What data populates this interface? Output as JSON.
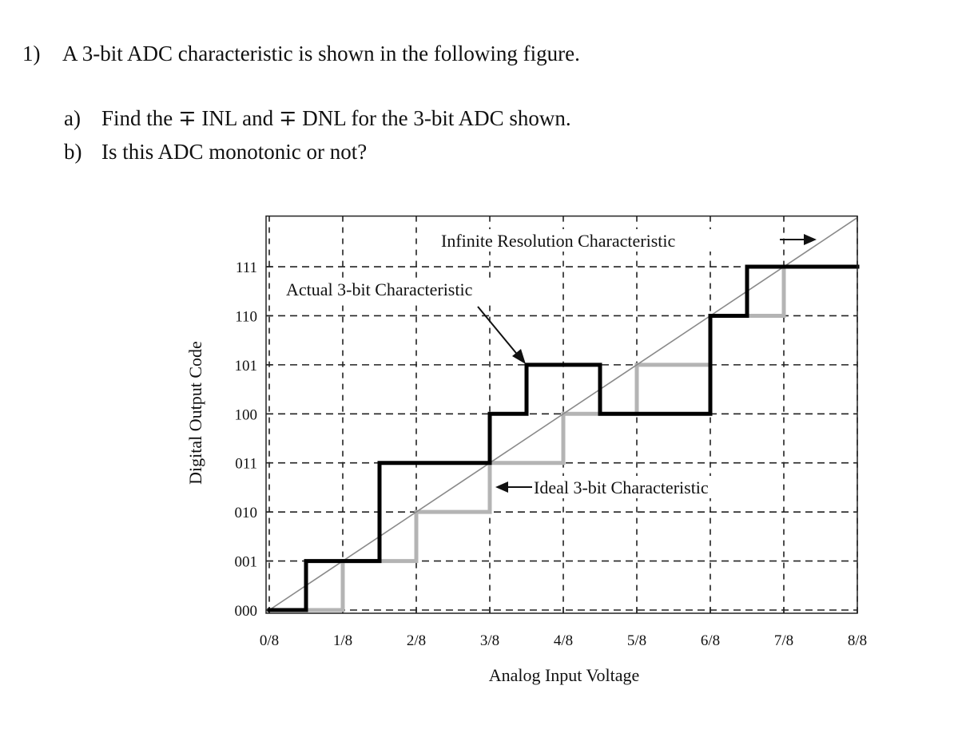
{
  "question": {
    "number": "1)",
    "text": "A 3-bit ADC characteristic is shown in the following figure.",
    "parts": [
      {
        "label": "a)",
        "text": "Find the ∓ INL and ∓ DNL for the 3-bit ADC shown."
      },
      {
        "label": "b)",
        "text": "Is this ADC monotonic or not?"
      }
    ]
  },
  "chart_data": {
    "type": "step",
    "x_label": "Analog Input Voltage",
    "y_label": "Digital Output Code",
    "xlim": [
      0,
      1
    ],
    "ylim": [
      0,
      8
    ],
    "xticks": [
      {
        "value": 0,
        "label": "0/8"
      },
      {
        "value": 0.125,
        "label": "1/8"
      },
      {
        "value": 0.25,
        "label": "2/8"
      },
      {
        "value": 0.375,
        "label": "3/8"
      },
      {
        "value": 0.5,
        "label": "4/8"
      },
      {
        "value": 0.625,
        "label": "5/8"
      },
      {
        "value": 0.75,
        "label": "6/8"
      },
      {
        "value": 0.875,
        "label": "7/8"
      },
      {
        "value": 1,
        "label": "8/8"
      }
    ],
    "yticks": [
      {
        "value": 0,
        "label": "000"
      },
      {
        "value": 1,
        "label": "001"
      },
      {
        "value": 2,
        "label": "010"
      },
      {
        "value": 3,
        "label": "011"
      },
      {
        "value": 4,
        "label": "100"
      },
      {
        "value": 5,
        "label": "101"
      },
      {
        "value": 6,
        "label": "110"
      },
      {
        "value": 7,
        "label": "111"
      }
    ],
    "grid": true,
    "series": [
      {
        "name": "Ideal 3-bit Characteristic",
        "color": "#b4b4b4",
        "kind": "step",
        "x": [
          0,
          0.125,
          0.25,
          0.375,
          0.5,
          0.625,
          0.75,
          0.875
        ],
        "values": [
          0,
          1,
          2,
          3,
          4,
          5,
          6,
          7
        ]
      },
      {
        "name": "Infinite Resolution Characteristic",
        "color": "#8a8a8a",
        "kind": "line",
        "x": [
          0,
          1
        ],
        "values": [
          0,
          8
        ]
      },
      {
        "name": "Actual 3-bit Characteristic",
        "color": "#000000",
        "kind": "step",
        "x": [
          0,
          0.0625,
          0.1875,
          0.375,
          0.4375,
          0.5625,
          0.75,
          0.8125
        ],
        "values": [
          0,
          1,
          3,
          4,
          5,
          4,
          6,
          7
        ]
      }
    ]
  }
}
